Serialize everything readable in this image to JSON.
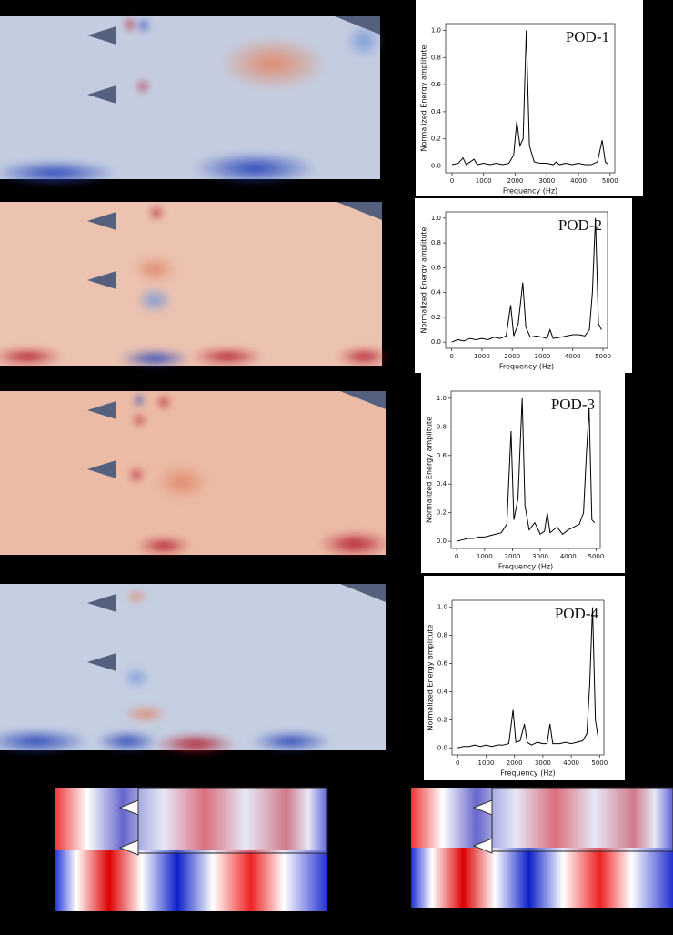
{
  "chart_data": [
    {
      "type": "line",
      "title": "POD-1",
      "x_label": "Frequency (Hz)",
      "y_label": "Normalized Energy amplitute",
      "x": [
        0,
        200,
        350,
        450,
        700,
        800,
        1000,
        1200,
        1400,
        1600,
        1800,
        1950,
        2050,
        2150,
        2250,
        2350,
        2450,
        2600,
        2800,
        3000,
        3200,
        3300,
        3400,
        3600,
        3800,
        4000,
        4200,
        4400,
        4600,
        4750,
        4850,
        4950
      ],
      "series": [
        {
          "color": "#000000",
          "values": [
            0.01,
            0.02,
            0.06,
            0.01,
            0.05,
            0.01,
            0.02,
            0.01,
            0.02,
            0.01,
            0.02,
            0.08,
            0.33,
            0.15,
            0.2,
            1.0,
            0.15,
            0.03,
            0.02,
            0.02,
            0.01,
            0.03,
            0.01,
            0.02,
            0.01,
            0.02,
            0.01,
            0.01,
            0.03,
            0.19,
            0.03,
            0.01
          ]
        }
      ],
      "xlim": [
        -200,
        5150
      ],
      "ylim": [
        -0.05,
        1.05
      ],
      "xticks": [
        0,
        1000,
        2000,
        3000,
        4000,
        5000
      ],
      "yticks": [
        {
          "value": 0,
          "label": "0.0"
        },
        0.2,
        0.4,
        0.6,
        0.8,
        {
          "value": 1,
          "label": "1.0"
        }
      ]
    },
    {
      "type": "line",
      "title": "POD-2",
      "x_label": "Frequency (Hz)",
      "y_label": "Normalized Energy amplitute",
      "x": [
        0,
        200,
        400,
        600,
        800,
        1000,
        1200,
        1400,
        1600,
        1800,
        1950,
        2050,
        2200,
        2350,
        2450,
        2600,
        2800,
        3000,
        3150,
        3250,
        3350,
        3600,
        3800,
        4000,
        4200,
        4400,
        4550,
        4650,
        4750,
        4850,
        4950
      ],
      "series": [
        {
          "color": "#000000",
          "values": [
            0.0,
            0.02,
            0.01,
            0.03,
            0.02,
            0.03,
            0.02,
            0.04,
            0.03,
            0.05,
            0.3,
            0.05,
            0.15,
            0.48,
            0.12,
            0.04,
            0.05,
            0.04,
            0.03,
            0.1,
            0.03,
            0.04,
            0.05,
            0.06,
            0.06,
            0.05,
            0.1,
            0.4,
            1.0,
            0.15,
            0.1
          ]
        }
      ],
      "xlim": [
        -200,
        5150
      ],
      "ylim": [
        -0.05,
        1.05
      ],
      "xticks": [
        0,
        1000,
        2000,
        3000,
        4000,
        5000
      ],
      "yticks": [
        {
          "value": 0,
          "label": "0.0"
        },
        0.2,
        0.4,
        0.6,
        0.8,
        {
          "value": 1,
          "label": "1.0"
        }
      ]
    },
    {
      "type": "line",
      "title": "POD-3",
      "x_label": "Frequency (Hz)",
      "y_label": "Normalized Energy amplitute",
      "x": [
        0,
        200,
        400,
        600,
        800,
        1000,
        1200,
        1400,
        1600,
        1800,
        1950,
        2050,
        2200,
        2350,
        2450,
        2600,
        2800,
        3000,
        3150,
        3250,
        3350,
        3600,
        3800,
        4000,
        4200,
        4400,
        4550,
        4650,
        4750,
        4850,
        4950
      ],
      "series": [
        {
          "color": "#000000",
          "values": [
            0.0,
            0.01,
            0.02,
            0.02,
            0.03,
            0.03,
            0.04,
            0.05,
            0.06,
            0.12,
            0.77,
            0.15,
            0.3,
            1.0,
            0.25,
            0.08,
            0.13,
            0.05,
            0.07,
            0.2,
            0.06,
            0.1,
            0.05,
            0.08,
            0.1,
            0.12,
            0.2,
            0.6,
            0.93,
            0.15,
            0.13
          ]
        }
      ],
      "xlim": [
        -200,
        5150
      ],
      "ylim": [
        -0.05,
        1.05
      ],
      "xticks": [
        0,
        1000,
        2000,
        3000,
        4000,
        5000
      ],
      "yticks": [
        {
          "value": 0,
          "label": "0.0"
        },
        0.2,
        0.4,
        0.6,
        0.8,
        {
          "value": 1,
          "label": "1.0"
        }
      ]
    },
    {
      "type": "line",
      "title": "POD-4",
      "x_label": "Frequency (Hz)",
      "y_label": "Normalized Energy amplitute",
      "x": [
        0,
        200,
        400,
        600,
        800,
        1000,
        1200,
        1400,
        1600,
        1800,
        1950,
        2050,
        2200,
        2350,
        2450,
        2600,
        2800,
        3000,
        3150,
        3250,
        3350,
        3600,
        3800,
        4000,
        4200,
        4400,
        4550,
        4650,
        4750,
        4850,
        4950
      ],
      "series": [
        {
          "color": "#000000",
          "values": [
            0.0,
            0.01,
            0.01,
            0.02,
            0.01,
            0.02,
            0.01,
            0.02,
            0.02,
            0.03,
            0.27,
            0.04,
            0.05,
            0.17,
            0.04,
            0.02,
            0.04,
            0.03,
            0.03,
            0.17,
            0.03,
            0.03,
            0.04,
            0.03,
            0.04,
            0.05,
            0.1,
            0.45,
            1.0,
            0.2,
            0.07
          ]
        }
      ],
      "xlim": [
        -200,
        5150
      ],
      "ylim": [
        -0.05,
        1.05
      ],
      "xticks": [
        0,
        1000,
        2000,
        3000,
        4000,
        5000
      ],
      "yticks": [
        {
          "value": 0,
          "label": "0.0"
        },
        0.2,
        0.4,
        0.6,
        0.8,
        {
          "value": 1,
          "label": "1.0"
        }
      ]
    }
  ]
}
